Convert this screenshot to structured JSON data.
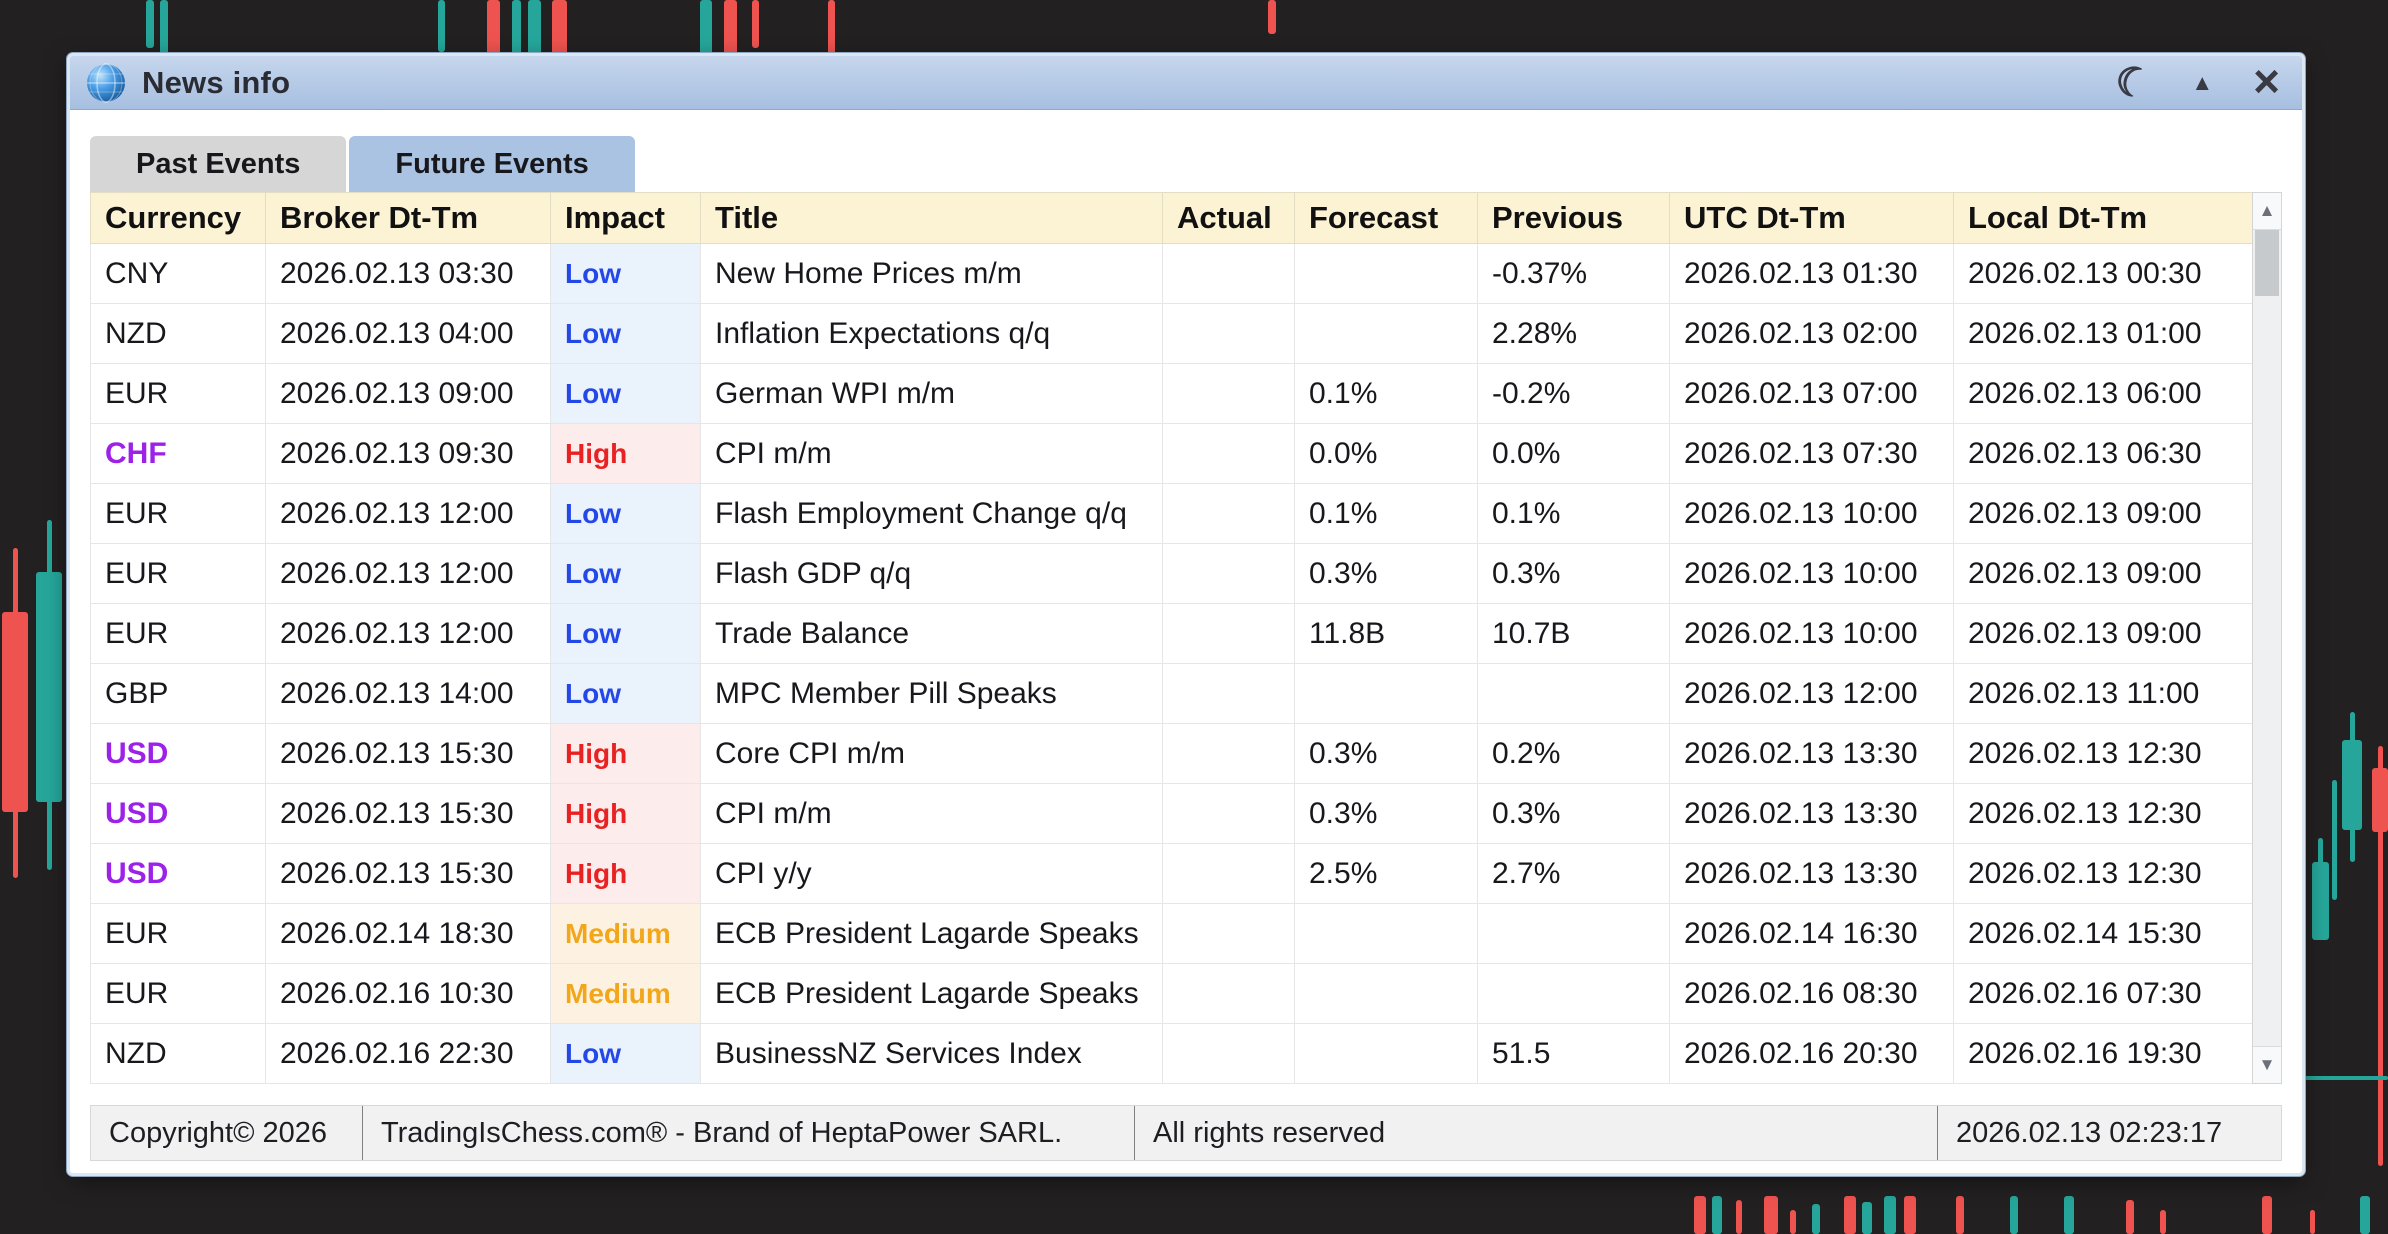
{
  "window": {
    "title": "News info",
    "controls": {
      "night_icon": "☾",
      "collapse_icon": "▲",
      "close_icon": "×"
    }
  },
  "tabs": [
    {
      "label": "Past Events",
      "active": false
    },
    {
      "label": "Future Events",
      "active": true
    }
  ],
  "table": {
    "columns": [
      "Currency",
      "Broker Dt-Tm",
      "Impact",
      "Title",
      "Actual",
      "Forecast",
      "Previous",
      "UTC Dt-Tm",
      "Local Dt-Tm"
    ],
    "highlight_currencies": [
      "CHF",
      "USD"
    ],
    "rows": [
      {
        "currency": "CNY",
        "broker": "2026.02.13 03:30",
        "impact": "Low",
        "title": "New Home Prices m/m",
        "actual": "",
        "forecast": "",
        "previous": "-0.37%",
        "utc": "2026.02.13 01:30",
        "local": "2026.02.13 00:30"
      },
      {
        "currency": "NZD",
        "broker": "2026.02.13 04:00",
        "impact": "Low",
        "title": "Inflation Expectations q/q",
        "actual": "",
        "forecast": "",
        "previous": "2.28%",
        "utc": "2026.02.13 02:00",
        "local": "2026.02.13 01:00"
      },
      {
        "currency": "EUR",
        "broker": "2026.02.13 09:00",
        "impact": "Low",
        "title": "German WPI m/m",
        "actual": "",
        "forecast": "0.1%",
        "previous": "-0.2%",
        "utc": "2026.02.13 07:00",
        "local": "2026.02.13 06:00"
      },
      {
        "currency": "CHF",
        "broker": "2026.02.13 09:30",
        "impact": "High",
        "title": "CPI m/m",
        "actual": "",
        "forecast": "0.0%",
        "previous": "0.0%",
        "utc": "2026.02.13 07:30",
        "local": "2026.02.13 06:30"
      },
      {
        "currency": "EUR",
        "broker": "2026.02.13 12:00",
        "impact": "Low",
        "title": "Flash Employment Change q/q",
        "actual": "",
        "forecast": "0.1%",
        "previous": "0.1%",
        "utc": "2026.02.13 10:00",
        "local": "2026.02.13 09:00"
      },
      {
        "currency": "EUR",
        "broker": "2026.02.13 12:00",
        "impact": "Low",
        "title": "Flash GDP q/q",
        "actual": "",
        "forecast": "0.3%",
        "previous": "0.3%",
        "utc": "2026.02.13 10:00",
        "local": "2026.02.13 09:00"
      },
      {
        "currency": "EUR",
        "broker": "2026.02.13 12:00",
        "impact": "Low",
        "title": "Trade Balance",
        "actual": "",
        "forecast": "11.8B",
        "previous": "10.7B",
        "utc": "2026.02.13 10:00",
        "local": "2026.02.13 09:00"
      },
      {
        "currency": "GBP",
        "broker": "2026.02.13 14:00",
        "impact": "Low",
        "title": "MPC Member Pill Speaks",
        "actual": "",
        "forecast": "",
        "previous": "",
        "utc": "2026.02.13 12:00",
        "local": "2026.02.13 11:00"
      },
      {
        "currency": "USD",
        "broker": "2026.02.13 15:30",
        "impact": "High",
        "title": "Core CPI m/m",
        "actual": "",
        "forecast": "0.3%",
        "previous": "0.2%",
        "utc": "2026.02.13 13:30",
        "local": "2026.02.13 12:30"
      },
      {
        "currency": "USD",
        "broker": "2026.02.13 15:30",
        "impact": "High",
        "title": "CPI m/m",
        "actual": "",
        "forecast": "0.3%",
        "previous": "0.3%",
        "utc": "2026.02.13 13:30",
        "local": "2026.02.13 12:30"
      },
      {
        "currency": "USD",
        "broker": "2026.02.13 15:30",
        "impact": "High",
        "title": "CPI y/y",
        "actual": "",
        "forecast": "2.5%",
        "previous": "2.7%",
        "utc": "2026.02.13 13:30",
        "local": "2026.02.13 12:30"
      },
      {
        "currency": "EUR",
        "broker": "2026.02.14 18:30",
        "impact": "Medium",
        "title": "ECB President Lagarde Speaks",
        "actual": "",
        "forecast": "",
        "previous": "",
        "utc": "2026.02.14 16:30",
        "local": "2026.02.14 15:30"
      },
      {
        "currency": "EUR",
        "broker": "2026.02.16 10:30",
        "impact": "Medium",
        "title": "ECB President Lagarde Speaks",
        "actual": "",
        "forecast": "",
        "previous": "",
        "utc": "2026.02.16 08:30",
        "local": "2026.02.16 07:30"
      },
      {
        "currency": "NZD",
        "broker": "2026.02.16 22:30",
        "impact": "Low",
        "title": "BusinessNZ Services Index",
        "actual": "",
        "forecast": "",
        "previous": "51.5",
        "utc": "2026.02.16 20:30",
        "local": "2026.02.16 19:30"
      }
    ]
  },
  "scrollbar": {
    "up_icon": "▲",
    "down_icon": "▼"
  },
  "footer": {
    "copyright": "Copyright© 2026",
    "brand": "TradingIsChess.com® - Brand of HeptaPower SARL.",
    "rights": "All rights reserved",
    "timestamp": "2026.02.13 02:23:17"
  },
  "colors": {
    "page_bg": "#232021",
    "titlebar_top": "#c6d6ed",
    "titlebar_bottom": "#a7bfe0",
    "tab_active_bg": "#abc3e2",
    "tab_inactive_bg": "#d6d6d6",
    "header_bg": "#fcf3d4",
    "footer_bg": "#f1f1f1",
    "impact_low_text": "#2447e8",
    "impact_low_bg": "#eaf2fc",
    "impact_high_text": "#e82222",
    "impact_high_bg": "#fdecec",
    "impact_medium_text": "#f2a71b",
    "impact_medium_bg": "#fdf2e1",
    "currency_highlight": "#9d22e8",
    "candle_up": "#26a69a",
    "candle_down": "#ef5350"
  }
}
